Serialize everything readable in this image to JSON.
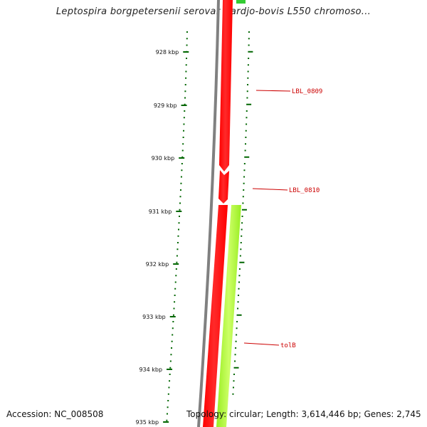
{
  "title": "Leptospira borgpetersenii serovar Hardjo-bovis L550 chromoso...",
  "footer": {
    "accession": "Accession: NC_008508",
    "summary": "Topology: circular; Length: 3,614,446 bp; Genes: 2,745"
  },
  "colors": {
    "backbone": "#808080",
    "gene_forward": "#ff0000",
    "gene_other": "#99ff33",
    "gene_topright": "#33cc33",
    "ticks": "#006600",
    "labels": "#cc0000"
  },
  "scale": {
    "ticks": [
      "928 kbp",
      "929 kbp",
      "930 kbp",
      "931 kbp",
      "932 kbp",
      "933 kbp",
      "934 kbp",
      "935 kbp"
    ]
  },
  "genes": [
    {
      "label": "LBL_0809"
    },
    {
      "label": "LBL_0810"
    },
    {
      "label": "tolB"
    }
  ]
}
